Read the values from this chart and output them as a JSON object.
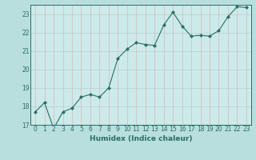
{
  "x": [
    0,
    1,
    2,
    3,
    4,
    5,
    6,
    7,
    8,
    9,
    10,
    11,
    12,
    13,
    14,
    15,
    16,
    17,
    18,
    19,
    20,
    21,
    22,
    23
  ],
  "y": [
    17.7,
    18.2,
    16.8,
    17.7,
    17.9,
    18.5,
    18.65,
    18.5,
    19.0,
    20.6,
    21.1,
    21.45,
    21.35,
    21.3,
    22.4,
    23.1,
    22.35,
    21.8,
    21.85,
    21.8,
    22.1,
    22.85,
    23.4,
    23.35
  ],
  "xlabel": "Humidex (Indice chaleur)",
  "ylim": [
    17,
    23.5
  ],
  "xlim": [
    -0.5,
    23.5
  ],
  "yticks": [
    17,
    18,
    19,
    20,
    21,
    22,
    23
  ],
  "xticks": [
    0,
    1,
    2,
    3,
    4,
    5,
    6,
    7,
    8,
    9,
    10,
    11,
    12,
    13,
    14,
    15,
    16,
    17,
    18,
    19,
    20,
    21,
    22,
    23
  ],
  "line_color": "#2a6e63",
  "marker_color": "#2a6e63",
  "bg_color": "#b8dede",
  "grid_color_v": "#d8b8b8",
  "grid_color_h": "#b8cccc",
  "plot_bg": "#cceaea",
  "tick_fontsize": 5.5,
  "xlabel_fontsize": 6.5
}
